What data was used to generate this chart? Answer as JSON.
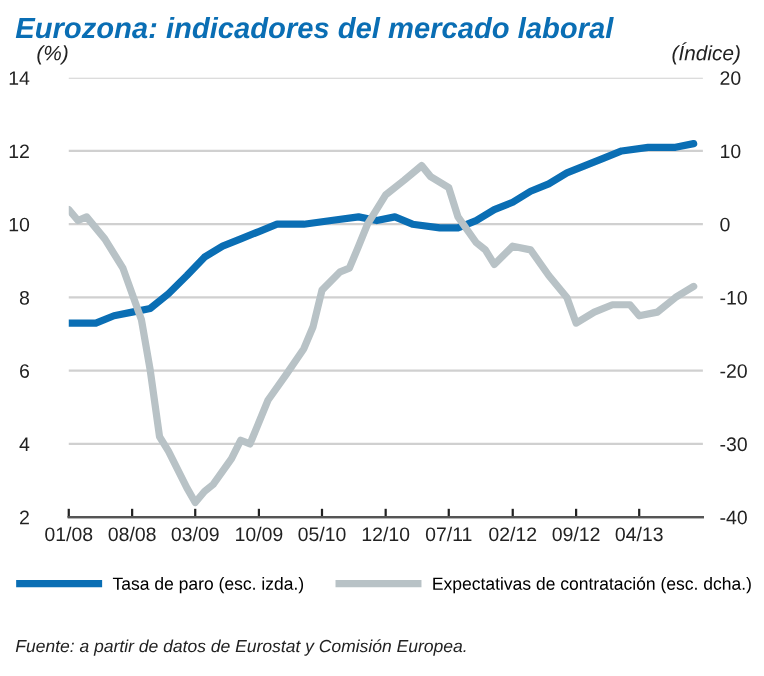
{
  "chart_data": {
    "type": "line",
    "title": "Eurozona: indicadores del mercado laboral",
    "ylabel": "(%)",
    "y2label": "(Índice)",
    "annotations": [
      "Fuente: a partir de datos de Eurostat y Comisión Europea."
    ],
    "xlim": [
      "2008-01",
      "2013-11"
    ],
    "xticks": [
      {
        "value": "2008-01",
        "label": "01/08"
      },
      {
        "value": "2008-08",
        "label": "08/08"
      },
      {
        "value": "2009-03",
        "label": "03/09"
      },
      {
        "value": "2009-10",
        "label": "10/09"
      },
      {
        "value": "2010-05",
        "label": "05/10"
      },
      {
        "value": "2010-12",
        "label": "12/10"
      },
      {
        "value": "2011-07",
        "label": "07/11"
      },
      {
        "value": "2012-02",
        "label": "02/12"
      },
      {
        "value": "2012-09",
        "label": "09/12"
      },
      {
        "value": "2013-04",
        "label": "04/13"
      }
    ],
    "ylim": [
      2,
      14
    ],
    "yticks": [
      2,
      4,
      6,
      8,
      10,
      12,
      14
    ],
    "y2lim": [
      -40,
      20
    ],
    "y2ticks": [
      -40,
      -30,
      -20,
      -10,
      0,
      10,
      20
    ],
    "grid": "y",
    "legend": "bottom",
    "series": [
      {
        "name": "Tasa de paro (esc. izda.)",
        "color": "#0a6eb4",
        "x": [
          "2008-01",
          "2008-04",
          "2008-06",
          "2008-08",
          "2008-10",
          "2008-12",
          "2009-02",
          "2009-04",
          "2009-06",
          "2009-08",
          "2009-10",
          "2009-12",
          "2010-03",
          "2010-06",
          "2010-09",
          "2010-11",
          "2011-01",
          "2011-03",
          "2011-06",
          "2011-08",
          "2011-10",
          "2011-12",
          "2012-02",
          "2012-04",
          "2012-06",
          "2012-08",
          "2012-10",
          "2012-12",
          "2013-02",
          "2013-05",
          "2013-08",
          "2013-10"
        ],
        "values": [
          7.3,
          7.3,
          7.5,
          7.6,
          7.7,
          8.1,
          8.6,
          9.1,
          9.4,
          9.6,
          9.8,
          10.0,
          10.0,
          10.1,
          10.2,
          10.1,
          10.2,
          10.0,
          9.9,
          9.9,
          10.1,
          10.4,
          10.6,
          10.9,
          11.1,
          11.4,
          11.6,
          11.8,
          12.0,
          12.1,
          12.1,
          12.2
        ]
      },
      {
        "name": "Expectativas de contratación (esc. dcha.)",
        "color": "#b8c2c6",
        "axis": "y2",
        "x": [
          "2008-01",
          "2008-02",
          "2008-03",
          "2008-05",
          "2008-07",
          "2008-09",
          "2008-10",
          "2008-11",
          "2008-12",
          "2009-02",
          "2009-03",
          "2009-04",
          "2009-05",
          "2009-07",
          "2009-08",
          "2009-09",
          "2009-11",
          "2010-01",
          "2010-03",
          "2010-04",
          "2010-05",
          "2010-07",
          "2010-08",
          "2010-09",
          "2010-10",
          "2010-12",
          "2011-02",
          "2011-04",
          "2011-05",
          "2011-07",
          "2011-08",
          "2011-10",
          "2011-11",
          "2011-12",
          "2012-02",
          "2012-04",
          "2012-06",
          "2012-08",
          "2012-09",
          "2012-11",
          "2013-01",
          "2013-03",
          "2013-04",
          "2013-06",
          "2013-08",
          "2013-10"
        ],
        "values": [
          2,
          0.5,
          1,
          -2,
          -6,
          -13,
          -20,
          -29,
          -31,
          -36,
          -38,
          -36.5,
          -35.5,
          -32,
          -29.5,
          -30,
          -24,
          -20.5,
          -17,
          -14,
          -9,
          -6.5,
          -6,
          -3,
          0,
          4,
          6,
          8,
          6.5,
          5,
          1,
          -2.5,
          -3.5,
          -5.5,
          -3,
          -3.5,
          -7,
          -10,
          -13.5,
          -12,
          -11,
          -11,
          -12.5,
          -12,
          -10,
          -8.5
        ]
      }
    ]
  }
}
